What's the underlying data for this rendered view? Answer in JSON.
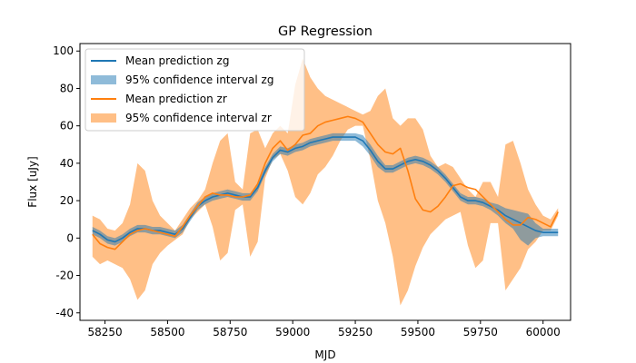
{
  "chart_data": {
    "type": "line",
    "title": "GP Regression",
    "xlabel": "MJD",
    "ylabel": "Flux [uJy]",
    "xlim": [
      58150,
      60110
    ],
    "ylim": [
      -44,
      104
    ],
    "xticks": [
      58250,
      58500,
      58750,
      59000,
      59250,
      59500,
      59750,
      60000
    ],
    "yticks": [
      -40,
      -20,
      0,
      20,
      40,
      60,
      80,
      100
    ],
    "grid": false,
    "legend_position": "top-left",
    "legend": [
      "Mean prediction zg",
      "95% confidence interval zg",
      "Mean prediction zr",
      "95% confidence interval zr"
    ],
    "colors": {
      "zg_line": "#1f77b4",
      "zg_band": "#1f77b4",
      "zr_line": "#ff7f0e",
      "zr_band": "#ff7f0e"
    },
    "series": [
      {
        "name": "Mean prediction zg",
        "kind": "line",
        "color": "#1f77b4",
        "x": [
          58200,
          58230,
          58260,
          58290,
          58320,
          58350,
          58380,
          58410,
          58440,
          58470,
          58500,
          58530,
          58560,
          58590,
          58620,
          58650,
          58680,
          58710,
          58740,
          58770,
          58800,
          58830,
          58860,
          58890,
          58920,
          58950,
          58980,
          59010,
          59040,
          59070,
          59100,
          59130,
          59160,
          59190,
          59220,
          59250,
          59280,
          59310,
          59340,
          59370,
          59400,
          59430,
          59460,
          59490,
          59520,
          59550,
          59580,
          59610,
          59640,
          59670,
          59700,
          59730,
          59760,
          59790,
          59820,
          59850,
          59880,
          59910,
          59940,
          59970,
          60000,
          60030,
          60060
        ],
        "y": [
          4,
          2,
          -1,
          -2,
          0,
          3,
          5,
          5,
          4,
          4,
          3,
          2,
          5,
          11,
          17,
          20,
          22,
          23,
          24,
          23,
          22,
          22,
          27,
          36,
          43,
          47,
          46,
          48,
          49,
          51,
          52,
          53,
          54,
          54,
          54,
          54,
          52,
          47,
          41,
          37,
          37,
          39,
          41,
          42,
          41,
          39,
          36,
          32,
          27,
          22,
          20,
          20,
          19,
          17,
          15,
          12,
          10,
          8,
          6,
          4,
          3,
          3,
          3
        ]
      },
      {
        "name": "95% confidence interval zg",
        "kind": "band",
        "color": "#1f77b4",
        "x": [
          58200,
          58230,
          58260,
          58290,
          58320,
          58350,
          58380,
          58410,
          58440,
          58470,
          58500,
          58530,
          58560,
          58590,
          58620,
          58650,
          58680,
          58710,
          58740,
          58770,
          58800,
          58830,
          58860,
          58890,
          58920,
          58950,
          58980,
          59010,
          59040,
          59070,
          59100,
          59130,
          59160,
          59190,
          59220,
          59250,
          59280,
          59310,
          59340,
          59370,
          59400,
          59430,
          59460,
          59490,
          59520,
          59550,
          59580,
          59610,
          59640,
          59670,
          59700,
          59730,
          59760,
          59790,
          59820,
          59850,
          59880,
          59910,
          59940,
          59970,
          60000,
          60030,
          60060
        ],
        "lower": [
          2,
          0,
          -3,
          -4,
          -2,
          1,
          3,
          3,
          2,
          2,
          1,
          0,
          3,
          9,
          15,
          18,
          20,
          21,
          22,
          21,
          20,
          20,
          25,
          34,
          41,
          45,
          44,
          46,
          47,
          49,
          50,
          51,
          52,
          52,
          52,
          52,
          49,
          44,
          38,
          35,
          35,
          37,
          39,
          40,
          39,
          37,
          34,
          30,
          25,
          20,
          18,
          18,
          17,
          15,
          12,
          8,
          5,
          -1,
          -4,
          0,
          1,
          1,
          1
        ],
        "upper": [
          6,
          4,
          1,
          0,
          2,
          5,
          7,
          7,
          6,
          6,
          5,
          4,
          7,
          13,
          19,
          22,
          24,
          25,
          26,
          25,
          24,
          24,
          29,
          38,
          45,
          49,
          48,
          50,
          51,
          53,
          54,
          55,
          56,
          56,
          56,
          56,
          55,
          50,
          44,
          39,
          39,
          41,
          43,
          44,
          43,
          41,
          38,
          34,
          29,
          24,
          22,
          22,
          21,
          19,
          18,
          16,
          15,
          14,
          13,
          8,
          5,
          5,
          5
        ]
      },
      {
        "name": "Mean prediction zr",
        "kind": "line",
        "color": "#ff7f0e",
        "x": [
          58200,
          58230,
          58260,
          58290,
          58320,
          58350,
          58380,
          58410,
          58440,
          58470,
          58500,
          58530,
          58560,
          58590,
          58620,
          58650,
          58680,
          58710,
          58740,
          58770,
          58800,
          58830,
          58860,
          58890,
          58920,
          58950,
          58980,
          59010,
          59040,
          59070,
          59100,
          59130,
          59160,
          59190,
          59220,
          59250,
          59280,
          59310,
          59340,
          59370,
          59400,
          59430,
          59460,
          59490,
          59520,
          59550,
          59580,
          59610,
          59640,
          59670,
          59700,
          59730,
          59760,
          59790,
          59820,
          59850,
          59880,
          59910,
          59940,
          59970,
          60000,
          60030,
          60060
        ],
        "y": [
          2,
          -3,
          -5,
          -6,
          -2,
          2,
          4,
          5,
          4,
          3,
          2,
          1,
          6,
          12,
          17,
          22,
          24,
          23,
          23,
          22,
          22,
          23,
          29,
          40,
          48,
          52,
          47,
          50,
          55,
          56,
          60,
          62,
          63,
          64,
          65,
          64,
          62,
          56,
          50,
          46,
          45,
          48,
          36,
          21,
          15,
          14,
          17,
          22,
          28,
          29,
          27,
          26,
          22,
          18,
          14,
          10,
          7,
          7,
          11,
          10,
          8,
          6,
          14
        ]
      },
      {
        "name": "95% confidence interval zr",
        "kind": "band",
        "color": "#ff7f0e",
        "x": [
          58200,
          58230,
          58260,
          58290,
          58320,
          58350,
          58380,
          58410,
          58440,
          58470,
          58500,
          58530,
          58560,
          58590,
          58620,
          58650,
          58680,
          58710,
          58740,
          58770,
          58800,
          58830,
          58860,
          58890,
          58920,
          58950,
          58980,
          59010,
          59040,
          59070,
          59100,
          59130,
          59160,
          59190,
          59220,
          59250,
          59280,
          59310,
          59340,
          59370,
          59400,
          59430,
          59460,
          59490,
          59520,
          59550,
          59580,
          59610,
          59640,
          59670,
          59700,
          59730,
          59760,
          59790,
          59820,
          59850,
          59880,
          59910,
          59940,
          59970,
          60000,
          60030,
          60060
        ],
        "lower": [
          -10,
          -14,
          -12,
          -14,
          -16,
          -22,
          -33,
          -28,
          -14,
          -8,
          -4,
          -1,
          2,
          10,
          14,
          18,
          6,
          -12,
          -8,
          15,
          18,
          -10,
          -2,
          32,
          42,
          45,
          36,
          22,
          18,
          24,
          34,
          38,
          44,
          52,
          58,
          60,
          60,
          42,
          20,
          8,
          -10,
          -36,
          -28,
          -15,
          -5,
          2,
          6,
          10,
          12,
          14,
          -4,
          -16,
          -12,
          8,
          8,
          -28,
          -22,
          -16,
          -6,
          -2,
          4,
          4,
          12
        ],
        "upper": [
          12,
          10,
          5,
          4,
          8,
          18,
          40,
          36,
          20,
          12,
          8,
          4,
          10,
          16,
          20,
          26,
          40,
          52,
          56,
          30,
          26,
          56,
          58,
          48,
          56,
          60,
          56,
          82,
          96,
          86,
          80,
          76,
          74,
          72,
          70,
          68,
          66,
          68,
          76,
          80,
          64,
          60,
          64,
          64,
          58,
          44,
          38,
          40,
          38,
          32,
          26,
          22,
          30,
          30,
          22,
          50,
          52,
          40,
          26,
          18,
          12,
          10,
          16
        ]
      }
    ]
  }
}
